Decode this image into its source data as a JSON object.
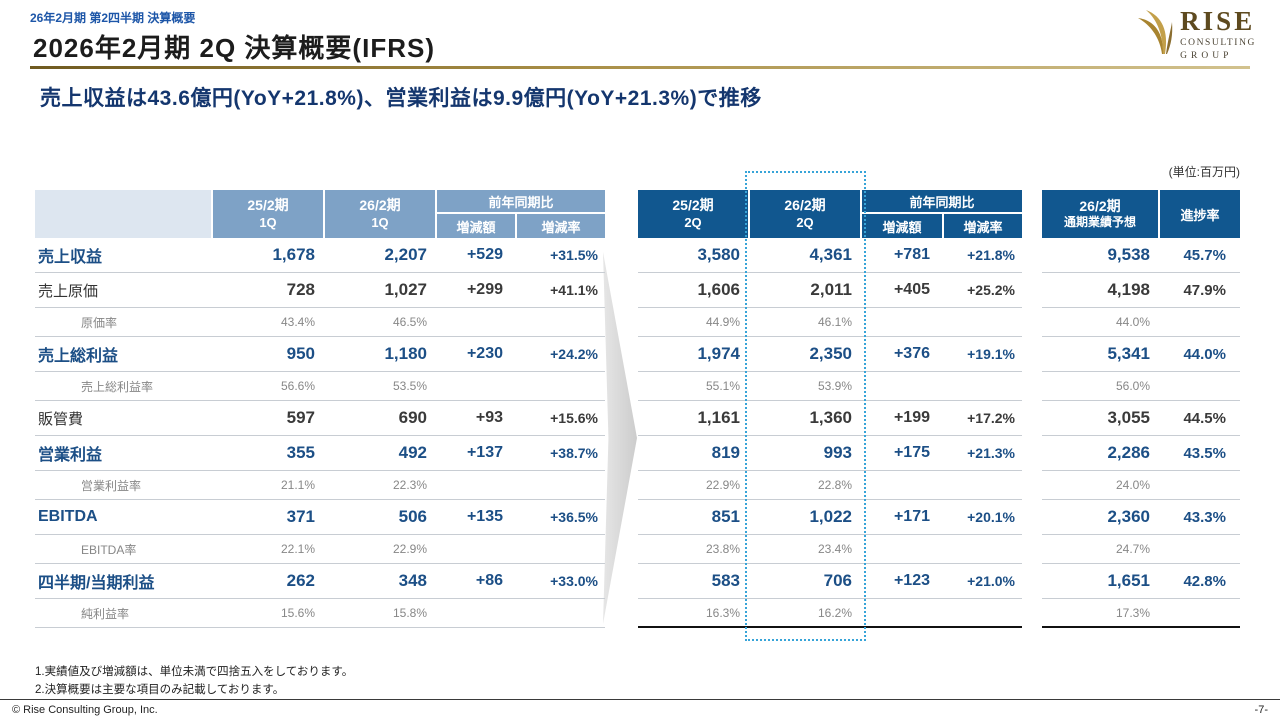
{
  "page": {
    "eyebrow": "26年2月期 第2四半期 決算概要",
    "title": "2026年2月期 2Q 決算概要(IFRS)",
    "headline": "売上収益は43.6億円(YoY+21.8%)、営業利益は9.9億円(YoY+21.3%)で推移",
    "unit_note": "(単位:百万円)",
    "footnote1": "1.実績値及び増減額は、単位未満で四捨五入をしております。",
    "footnote2": "2.決算概要は主要な項目のみ記載しております。",
    "footer_copyright": "© Rise Consulting Group, Inc.",
    "page_number": "-7-"
  },
  "logo": {
    "name": "RISE",
    "sub1": "CONSULTING",
    "sub2": "GROUP"
  },
  "colors": {
    "header_dark": "#11578f",
    "header_light": "#7ea2c6",
    "accent_gold": "#8a6d2f",
    "highlight_blue": "#37a4d8",
    "main_blue": "#1c4f86"
  },
  "q1_table": {
    "header": {
      "prev_period": "25/2期",
      "prev_quarter": "1Q",
      "curr_period": "26/2期",
      "curr_quarter": "1Q",
      "yoy": "前年同期比",
      "diff": "増減額",
      "rate": "増減率"
    }
  },
  "q2_table": {
    "header": {
      "prev_period": "25/2期",
      "prev_quarter": "2Q",
      "curr_period": "26/2期",
      "curr_quarter": "2Q",
      "yoy": "前年同期比",
      "diff": "増減額",
      "rate": "増減率"
    }
  },
  "fy_table": {
    "header": {
      "period": "26/2期",
      "label": "通期業績予想",
      "progress": "進捗率"
    }
  },
  "rows": [
    {
      "style": "main",
      "label": "売上収益",
      "q1": [
        "1,678",
        "2,207",
        "+529",
        "+31.5%"
      ],
      "q2": [
        "3,580",
        "4,361",
        "+781",
        "+21.8%"
      ],
      "fy": "9,538",
      "progress": "45.7%"
    },
    {
      "style": "normal",
      "label": "売上原価",
      "q1": [
        "728",
        "1,027",
        "+299",
        "+41.1%"
      ],
      "q2": [
        "1,606",
        "2,011",
        "+405",
        "+25.2%"
      ],
      "fy": "4,198",
      "progress": "47.9%"
    },
    {
      "style": "sub",
      "label": "原価率",
      "q1": [
        "43.4%",
        "46.5%",
        "",
        ""
      ],
      "q2": [
        "44.9%",
        "46.1%",
        "",
        ""
      ],
      "fy": "44.0%",
      "progress": ""
    },
    {
      "style": "main",
      "label": "売上総利益",
      "q1": [
        "950",
        "1,180",
        "+230",
        "+24.2%"
      ],
      "q2": [
        "1,974",
        "2,350",
        "+376",
        "+19.1%"
      ],
      "fy": "5,341",
      "progress": "44.0%"
    },
    {
      "style": "sub",
      "label": "売上総利益率",
      "q1": [
        "56.6%",
        "53.5%",
        "",
        ""
      ],
      "q2": [
        "55.1%",
        "53.9%",
        "",
        ""
      ],
      "fy": "56.0%",
      "progress": ""
    },
    {
      "style": "normal",
      "label": "販管費",
      "q1": [
        "597",
        "690",
        "+93",
        "+15.6%"
      ],
      "q2": [
        "1,161",
        "1,360",
        "+199",
        "+17.2%"
      ],
      "fy": "3,055",
      "progress": "44.5%"
    },
    {
      "style": "main",
      "label": "営業利益",
      "q1": [
        "355",
        "492",
        "+137",
        "+38.7%"
      ],
      "q2": [
        "819",
        "993",
        "+175",
        "+21.3%"
      ],
      "fy": "2,286",
      "progress": "43.5%"
    },
    {
      "style": "sub",
      "label": "営業利益率",
      "q1": [
        "21.1%",
        "22.3%",
        "",
        ""
      ],
      "q2": [
        "22.9%",
        "22.8%",
        "",
        ""
      ],
      "fy": "24.0%",
      "progress": ""
    },
    {
      "style": "main",
      "label": "EBITDA",
      "q1": [
        "371",
        "506",
        "+135",
        "+36.5%"
      ],
      "q2": [
        "851",
        "1,022",
        "+171",
        "+20.1%"
      ],
      "fy": "2,360",
      "progress": "43.3%"
    },
    {
      "style": "sub",
      "label": "EBITDA率",
      "q1": [
        "22.1%",
        "22.9%",
        "",
        ""
      ],
      "q2": [
        "23.8%",
        "23.4%",
        "",
        ""
      ],
      "fy": "24.7%",
      "progress": ""
    },
    {
      "style": "main",
      "label": "四半期/当期利益",
      "q1": [
        "262",
        "348",
        "+86",
        "+33.0%"
      ],
      "q2": [
        "583",
        "706",
        "+123",
        "+21.0%"
      ],
      "fy": "1,651",
      "progress": "42.8%"
    },
    {
      "style": "sub",
      "label": "純利益率",
      "q1": [
        "15.6%",
        "15.8%",
        "",
        ""
      ],
      "q2": [
        "16.3%",
        "16.2%",
        "",
        ""
      ],
      "fy": "17.3%",
      "progress": ""
    }
  ]
}
